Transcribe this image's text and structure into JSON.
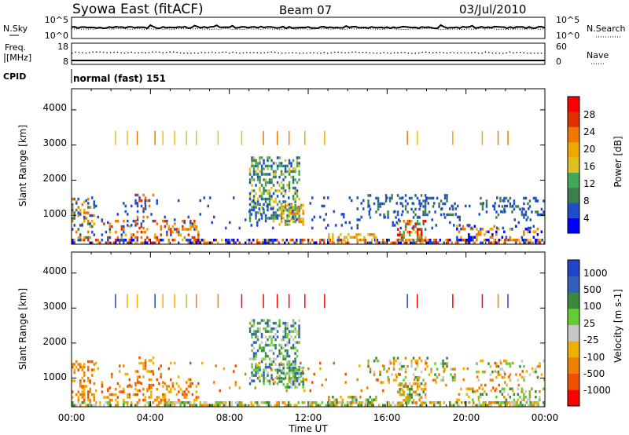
{
  "header": {
    "station": "Syowa East (fitACF)",
    "beam": "Beam 07",
    "date": "03/Jul/2010"
  },
  "noise_panel": {
    "left_label": "N.Sky",
    "right_label": "N.Search",
    "left_ticks": [
      "10^5",
      "10^0"
    ],
    "right_ticks": [
      "10^5",
      "10^0"
    ]
  },
  "freq_panel": {
    "left_label_1": "Freq.",
    "left_label_2": "[MHz]",
    "right_label": "Nave",
    "left_ticks": [
      "18",
      "8"
    ],
    "right_ticks": [
      "60",
      "0"
    ]
  },
  "cpid": {
    "label": "CPID",
    "mode": "normal (fast) 151"
  },
  "chart_data": [
    {
      "type": "heatmap",
      "title": "",
      "xlabel": "Time UT",
      "ylabel": "Slant Range [km]",
      "x_tick_labels": [
        "00:00",
        "04:00",
        "08:00",
        "12:00",
        "16:00",
        "20:00",
        "00:00"
      ],
      "y_tick_labels": [
        "1000",
        "2000",
        "3000",
        "4000"
      ],
      "xlim_hours": [
        0,
        24
      ],
      "ylim_km": [
        180,
        4600
      ],
      "colorbar": {
        "label": "Power [dB]",
        "tick_labels": [
          "4",
          "8",
          "12",
          "16",
          "20",
          "24",
          "28"
        ],
        "colors": [
          "#0000ff",
          "#1e4fc8",
          "#3e7d4c",
          "#44a85a",
          "#e0c020",
          "#f0a800",
          "#f07800",
          "#e03000",
          "#ff0000"
        ]
      }
    },
    {
      "type": "heatmap",
      "title": "",
      "xlabel": "Time UT",
      "ylabel": "Slant Range [km]",
      "x_tick_labels": [
        "00:00",
        "04:00",
        "08:00",
        "12:00",
        "16:00",
        "20:00",
        "00:00"
      ],
      "y_tick_labels": [
        "1000",
        "2000",
        "3000",
        "4000"
      ],
      "xlim_hours": [
        0,
        24
      ],
      "ylim_km": [
        180,
        4600
      ],
      "colorbar": {
        "label": "Velocity [m s-1]",
        "tick_labels": [
          "1000",
          "500",
          "100",
          "25",
          "-25",
          "-100",
          "-500",
          "-1000"
        ],
        "colors": [
          "#2244cc",
          "#3060b8",
          "#3a8a3a",
          "#66cc33",
          "#c8c8c8",
          "#f0b000",
          "#f08000",
          "#f05000",
          "#ff0000"
        ]
      }
    }
  ]
}
